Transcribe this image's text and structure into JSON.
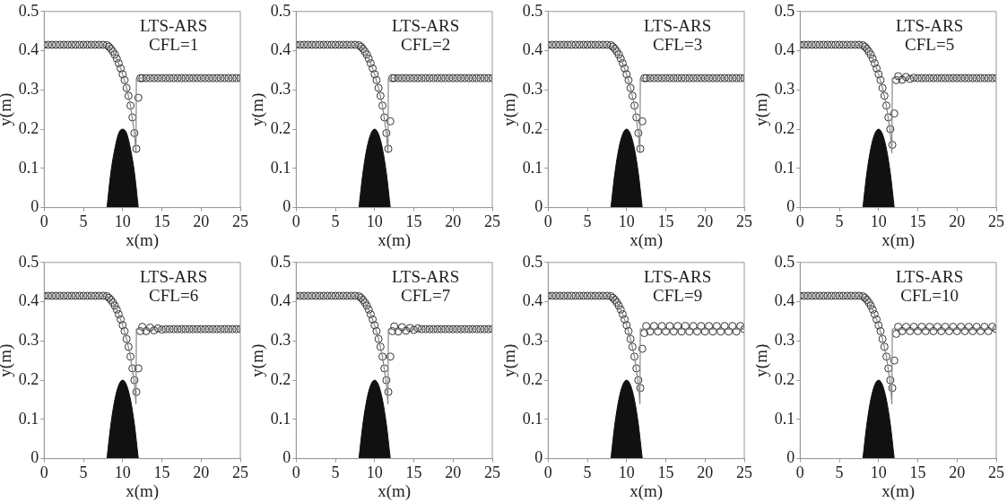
{
  "chart_data": [
    {
      "type": "line",
      "annotations": [
        "LTS-ARS",
        "CFL=1"
      ],
      "xlabel": "x(m)",
      "ylabel": "y(m)",
      "xlim": [
        0,
        25
      ],
      "xticks": [
        0,
        5,
        10,
        15,
        20,
        25
      ],
      "ylim": [
        0,
        0.5
      ],
      "yticks": [
        0,
        0.1,
        0.2,
        0.3,
        0.4,
        0.5
      ],
      "grid": false,
      "legend": false,
      "x": [
        0,
        0.5,
        1,
        1.5,
        2,
        2.5,
        3,
        3.5,
        4,
        4.5,
        5,
        5.5,
        6,
        6.5,
        7,
        7.5,
        8,
        8.25,
        8.5,
        8.75,
        9,
        9.25,
        9.5,
        9.75,
        10,
        10.25,
        10.5,
        10.75,
        11,
        11.25,
        11.5,
        11.75,
        12,
        12.25,
        12.5,
        13,
        13.5,
        14,
        14.5,
        15,
        15.5,
        16,
        16.5,
        17,
        17.5,
        18,
        18.5,
        19,
        19.5,
        20,
        20.5,
        21,
        21.5,
        22,
        22.5,
        23,
        23.5,
        24,
        24.5,
        25
      ],
      "series": [
        {
          "type": "area",
          "color": "#111111",
          "marker": "none",
          "x": [
            8,
            8.5,
            9,
            9.5,
            10,
            10.5,
            11,
            11.5,
            12
          ],
          "values": [
            0,
            0.09,
            0.15,
            0.19,
            0.2,
            0.19,
            0.15,
            0.09,
            0
          ]
        },
        {
          "type": "line",
          "color": "#888888",
          "marker": "none",
          "x": [
            0,
            8,
            8.5,
            9,
            9.5,
            10,
            10.5,
            11,
            11.5,
            11.7,
            11.75,
            25
          ],
          "values": [
            0.415,
            0.414,
            0.405,
            0.39,
            0.368,
            0.34,
            0.305,
            0.26,
            0.19,
            0.14,
            0.33,
            0.33
          ]
        },
        {
          "type": "scatter",
          "color": "#333333",
          "marker": "circle",
          "values": [
            0.415,
            0.415,
            0.415,
            0.415,
            0.415,
            0.415,
            0.415,
            0.415,
            0.415,
            0.415,
            0.415,
            0.415,
            0.415,
            0.415,
            0.415,
            0.415,
            0.414,
            0.41,
            0.405,
            0.398,
            0.39,
            0.38,
            0.368,
            0.355,
            0.34,
            0.325,
            0.305,
            0.285,
            0.26,
            0.23,
            0.19,
            0.15,
            0.28,
            0.33,
            0.33,
            0.33,
            0.33,
            0.33,
            0.33,
            0.33,
            0.33,
            0.33,
            0.33,
            0.33,
            0.33,
            0.33,
            0.33,
            0.33,
            0.33,
            0.33,
            0.33,
            0.33,
            0.33,
            0.33,
            0.33,
            0.33,
            0.33,
            0.33,
            0.33,
            0.33
          ]
        }
      ]
    },
    {
      "type": "line",
      "annotations": [
        "LTS-ARS",
        "CFL=2"
      ],
      "xlabel": "x(m)",
      "ylabel": "y(m)",
      "xlim": [
        0,
        25
      ],
      "xticks": [
        0,
        5,
        10,
        15,
        20,
        25
      ],
      "ylim": [
        0,
        0.5
      ],
      "yticks": [
        0,
        0.1,
        0.2,
        0.3,
        0.4,
        0.5
      ],
      "grid": false,
      "legend": false,
      "x": [
        0,
        0.5,
        1,
        1.5,
        2,
        2.5,
        3,
        3.5,
        4,
        4.5,
        5,
        5.5,
        6,
        6.5,
        7,
        7.5,
        8,
        8.25,
        8.5,
        8.75,
        9,
        9.25,
        9.5,
        9.75,
        10,
        10.25,
        10.5,
        10.75,
        11,
        11.25,
        11.5,
        11.75,
        12,
        12.25,
        12.5,
        13,
        13.5,
        14,
        14.5,
        15,
        15.5,
        16,
        16.5,
        17,
        17.5,
        18,
        18.5,
        19,
        19.5,
        20,
        20.5,
        21,
        21.5,
        22,
        22.5,
        23,
        23.5,
        24,
        24.5,
        25
      ],
      "series": [
        {
          "type": "area",
          "color": "#111111",
          "marker": "none",
          "x": [
            8,
            8.5,
            9,
            9.5,
            10,
            10.5,
            11,
            11.5,
            12
          ],
          "values": [
            0,
            0.0875,
            0.15,
            0.1875,
            0.2,
            0.1875,
            0.15,
            0.0875,
            0
          ]
        },
        {
          "type": "line",
          "color": "#888888",
          "marker": "none",
          "x": [
            0,
            8,
            8.5,
            9,
            9.5,
            10,
            10.5,
            11,
            11.5,
            11.7,
            11.75,
            25
          ],
          "values": [
            0.415,
            0.414,
            0.405,
            0.39,
            0.368,
            0.34,
            0.305,
            0.26,
            0.19,
            0.14,
            0.33,
            0.33
          ]
        },
        {
          "type": "scatter",
          "color": "#333333",
          "marker": "circle",
          "values": [
            0.415,
            0.415,
            0.415,
            0.415,
            0.415,
            0.415,
            0.415,
            0.415,
            0.415,
            0.415,
            0.415,
            0.415,
            0.415,
            0.415,
            0.415,
            0.415,
            0.414,
            0.41,
            0.405,
            0.398,
            0.39,
            0.38,
            0.368,
            0.355,
            0.34,
            0.325,
            0.305,
            0.285,
            0.26,
            0.23,
            0.19,
            0.15,
            0.22,
            0.33,
            0.33,
            0.33,
            0.33,
            0.33,
            0.33,
            0.33,
            0.33,
            0.33,
            0.33,
            0.33,
            0.33,
            0.33,
            0.33,
            0.33,
            0.33,
            0.33,
            0.33,
            0.33,
            0.33,
            0.33,
            0.33,
            0.33,
            0.33,
            0.33,
            0.33,
            0.33
          ]
        }
      ]
    },
    {
      "type": "line",
      "annotations": [
        "LTS-ARS",
        "CFL=3"
      ],
      "xlabel": "x(m)",
      "ylabel": "y(m)",
      "xlim": [
        0,
        25
      ],
      "xticks": [
        0,
        5,
        10,
        15,
        20,
        25
      ],
      "ylim": [
        0,
        0.5
      ],
      "yticks": [
        0,
        0.1,
        0.2,
        0.3,
        0.4,
        0.5
      ],
      "grid": false,
      "legend": false,
      "x": [
        0,
        0.5,
        1,
        1.5,
        2,
        2.5,
        3,
        3.5,
        4,
        4.5,
        5,
        5.5,
        6,
        6.5,
        7,
        7.5,
        8,
        8.25,
        8.5,
        8.75,
        9,
        9.25,
        9.5,
        9.75,
        10,
        10.25,
        10.5,
        10.75,
        11,
        11.25,
        11.5,
        11.75,
        12,
        12.25,
        12.5,
        13,
        13.5,
        14,
        14.5,
        15,
        15.5,
        16,
        16.5,
        17,
        17.5,
        18,
        18.5,
        19,
        19.5,
        20,
        20.5,
        21,
        21.5,
        22,
        22.5,
        23,
        23.5,
        24,
        24.5,
        25
      ],
      "series": [
        {
          "type": "area",
          "color": "#111111",
          "marker": "none",
          "x": [
            8,
            8.5,
            9,
            9.5,
            10,
            10.5,
            11,
            11.5,
            12
          ],
          "values": [
            0,
            0.0875,
            0.15,
            0.1875,
            0.2,
            0.1875,
            0.15,
            0.0875,
            0
          ]
        },
        {
          "type": "line",
          "color": "#888888",
          "marker": "none",
          "x": [
            0,
            8,
            8.5,
            9,
            9.5,
            10,
            10.5,
            11,
            11.5,
            11.7,
            11.75,
            25
          ],
          "values": [
            0.415,
            0.414,
            0.405,
            0.39,
            0.368,
            0.34,
            0.305,
            0.26,
            0.19,
            0.14,
            0.33,
            0.33
          ]
        },
        {
          "type": "scatter",
          "color": "#333333",
          "marker": "circle",
          "values": [
            0.415,
            0.415,
            0.415,
            0.415,
            0.415,
            0.415,
            0.415,
            0.415,
            0.415,
            0.415,
            0.415,
            0.415,
            0.415,
            0.415,
            0.415,
            0.415,
            0.414,
            0.41,
            0.405,
            0.398,
            0.39,
            0.38,
            0.368,
            0.355,
            0.34,
            0.325,
            0.305,
            0.285,
            0.26,
            0.23,
            0.19,
            0.15,
            0.22,
            0.33,
            0.33,
            0.33,
            0.33,
            0.33,
            0.33,
            0.33,
            0.33,
            0.33,
            0.33,
            0.33,
            0.33,
            0.33,
            0.33,
            0.33,
            0.33,
            0.33,
            0.33,
            0.33,
            0.33,
            0.33,
            0.33,
            0.33,
            0.33,
            0.33,
            0.33,
            0.33
          ]
        }
      ]
    },
    {
      "type": "line",
      "annotations": [
        "LTS-ARS",
        "CFL=5"
      ],
      "xlabel": "x(m)",
      "ylabel": "y(m)",
      "xlim": [
        0,
        25
      ],
      "xticks": [
        0,
        5,
        10,
        15,
        20,
        25
      ],
      "ylim": [
        0,
        0.5
      ],
      "yticks": [
        0,
        0.1,
        0.2,
        0.3,
        0.4,
        0.5
      ],
      "grid": false,
      "legend": false,
      "x": [
        0,
        0.5,
        1,
        1.5,
        2,
        2.5,
        3,
        3.5,
        4,
        4.5,
        5,
        5.5,
        6,
        6.5,
        7,
        7.5,
        8,
        8.25,
        8.5,
        8.75,
        9,
        9.25,
        9.5,
        9.75,
        10,
        10.25,
        10.5,
        10.75,
        11,
        11.25,
        11.5,
        11.75,
        12,
        12.25,
        12.5,
        13,
        13.5,
        14,
        14.5,
        15,
        15.5,
        16,
        16.5,
        17,
        17.5,
        18,
        18.5,
        19,
        19.5,
        20,
        20.5,
        21,
        21.5,
        22,
        22.5,
        23,
        23.5,
        24,
        24.5,
        25
      ],
      "series": [
        {
          "type": "area",
          "color": "#111111",
          "marker": "none",
          "x": [
            8,
            8.5,
            9,
            9.5,
            10,
            10.5,
            11,
            11.5,
            12
          ],
          "values": [
            0,
            0.0875,
            0.15,
            0.1875,
            0.2,
            0.1875,
            0.15,
            0.0875,
            0
          ]
        },
        {
          "type": "line",
          "color": "#888888",
          "marker": "none",
          "x": [
            0,
            8,
            8.5,
            9,
            9.5,
            10,
            10.5,
            11,
            11.5,
            11.7,
            11.75,
            25
          ],
          "values": [
            0.415,
            0.414,
            0.405,
            0.39,
            0.368,
            0.34,
            0.305,
            0.26,
            0.19,
            0.14,
            0.33,
            0.33
          ]
        },
        {
          "type": "scatter",
          "color": "#333333",
          "marker": "circle",
          "values": [
            0.415,
            0.415,
            0.415,
            0.415,
            0.415,
            0.415,
            0.415,
            0.415,
            0.415,
            0.415,
            0.415,
            0.415,
            0.415,
            0.415,
            0.415,
            0.415,
            0.414,
            0.41,
            0.405,
            0.398,
            0.39,
            0.38,
            0.368,
            0.355,
            0.34,
            0.325,
            0.305,
            0.285,
            0.26,
            0.23,
            0.2,
            0.16,
            0.24,
            0.325,
            0.335,
            0.326,
            0.333,
            0.328,
            0.331,
            0.33,
            0.33,
            0.33,
            0.33,
            0.33,
            0.33,
            0.33,
            0.33,
            0.33,
            0.33,
            0.33,
            0.33,
            0.33,
            0.33,
            0.33,
            0.33,
            0.33,
            0.33,
            0.33,
            0.33,
            0.33
          ]
        }
      ]
    },
    {
      "type": "line",
      "annotations": [
        "LTS-ARS",
        "CFL=6"
      ],
      "xlabel": "x(m)",
      "ylabel": "y(m)",
      "xlim": [
        0,
        25
      ],
      "xticks": [
        0,
        5,
        10,
        15,
        20,
        25
      ],
      "ylim": [
        0,
        0.5
      ],
      "yticks": [
        0,
        0.1,
        0.2,
        0.3,
        0.4,
        0.5
      ],
      "grid": false,
      "legend": false,
      "x": [
        0,
        0.5,
        1,
        1.5,
        2,
        2.5,
        3,
        3.5,
        4,
        4.5,
        5,
        5.5,
        6,
        6.5,
        7,
        7.5,
        8,
        8.25,
        8.5,
        8.75,
        9,
        9.25,
        9.5,
        9.75,
        10,
        10.25,
        10.5,
        10.75,
        11,
        11.25,
        11.5,
        11.75,
        12,
        12.25,
        12.5,
        13,
        13.5,
        14,
        14.5,
        15,
        15.5,
        16,
        16.5,
        17,
        17.5,
        18,
        18.5,
        19,
        19.5,
        20,
        20.5,
        21,
        21.5,
        22,
        22.5,
        23,
        23.5,
        24,
        24.5,
        25
      ],
      "series": [
        {
          "type": "area",
          "color": "#111111",
          "marker": "none",
          "x": [
            8,
            8.5,
            9,
            9.5,
            10,
            10.5,
            11,
            11.5,
            12
          ],
          "values": [
            0,
            0.0875,
            0.15,
            0.1875,
            0.2,
            0.1875,
            0.15,
            0.0875,
            0
          ]
        },
        {
          "type": "line",
          "color": "#888888",
          "marker": "none",
          "x": [
            0,
            8,
            8.5,
            9,
            9.5,
            10,
            10.5,
            11,
            11.5,
            11.7,
            11.75,
            25
          ],
          "values": [
            0.415,
            0.414,
            0.405,
            0.39,
            0.368,
            0.34,
            0.305,
            0.26,
            0.19,
            0.14,
            0.33,
            0.33
          ]
        },
        {
          "type": "scatter",
          "color": "#333333",
          "marker": "circle",
          "values": [
            0.415,
            0.415,
            0.415,
            0.415,
            0.415,
            0.415,
            0.415,
            0.415,
            0.415,
            0.415,
            0.415,
            0.415,
            0.415,
            0.415,
            0.415,
            0.415,
            0.414,
            0.41,
            0.405,
            0.398,
            0.39,
            0.38,
            0.368,
            0.355,
            0.34,
            0.325,
            0.305,
            0.285,
            0.26,
            0.23,
            0.2,
            0.17,
            0.23,
            0.325,
            0.336,
            0.325,
            0.334,
            0.327,
            0.332,
            0.329,
            0.33,
            0.33,
            0.33,
            0.33,
            0.33,
            0.33,
            0.33,
            0.33,
            0.33,
            0.33,
            0.33,
            0.33,
            0.33,
            0.33,
            0.33,
            0.33,
            0.33,
            0.33,
            0.33,
            0.33
          ]
        }
      ]
    },
    {
      "type": "line",
      "annotations": [
        "LTS-ARS",
        "CFL=7"
      ],
      "xlabel": "x(m)",
      "ylabel": "y(m)",
      "xlim": [
        0,
        25
      ],
      "xticks": [
        0,
        5,
        10,
        15,
        20,
        25
      ],
      "ylim": [
        0,
        0.5
      ],
      "yticks": [
        0,
        0.1,
        0.2,
        0.3,
        0.4,
        0.5
      ],
      "grid": false,
      "legend": false,
      "x": [
        0,
        0.5,
        1,
        1.5,
        2,
        2.5,
        3,
        3.5,
        4,
        4.5,
        5,
        5.5,
        6,
        6.5,
        7,
        7.5,
        8,
        8.25,
        8.5,
        8.75,
        9,
        9.25,
        9.5,
        9.75,
        10,
        10.25,
        10.5,
        10.75,
        11,
        11.25,
        11.5,
        11.75,
        12,
        12.25,
        12.5,
        13,
        13.5,
        14,
        14.5,
        15,
        15.5,
        16,
        16.5,
        17,
        17.5,
        18,
        18.5,
        19,
        19.5,
        20,
        20.5,
        21,
        21.5,
        22,
        22.5,
        23,
        23.5,
        24,
        24.5,
        25
      ],
      "series": [
        {
          "type": "area",
          "color": "#111111",
          "marker": "none",
          "x": [
            8,
            8.5,
            9,
            9.5,
            10,
            10.5,
            11,
            11.5,
            12
          ],
          "values": [
            0,
            0.0875,
            0.15,
            0.1875,
            0.2,
            0.1875,
            0.15,
            0.0875,
            0
          ]
        },
        {
          "type": "line",
          "color": "#888888",
          "marker": "none",
          "x": [
            0,
            8,
            8.5,
            9,
            9.5,
            10,
            10.5,
            11,
            11.5,
            11.7,
            11.75,
            25
          ],
          "values": [
            0.415,
            0.414,
            0.405,
            0.39,
            0.368,
            0.34,
            0.305,
            0.26,
            0.19,
            0.14,
            0.33,
            0.33
          ]
        },
        {
          "type": "scatter",
          "color": "#333333",
          "marker": "circle",
          "values": [
            0.415,
            0.415,
            0.415,
            0.415,
            0.415,
            0.415,
            0.415,
            0.415,
            0.415,
            0.415,
            0.415,
            0.415,
            0.415,
            0.415,
            0.415,
            0.415,
            0.414,
            0.41,
            0.405,
            0.398,
            0.39,
            0.38,
            0.368,
            0.355,
            0.34,
            0.325,
            0.305,
            0.285,
            0.26,
            0.23,
            0.2,
            0.17,
            0.26,
            0.325,
            0.337,
            0.324,
            0.335,
            0.326,
            0.333,
            0.328,
            0.332,
            0.33,
            0.33,
            0.33,
            0.33,
            0.33,
            0.33,
            0.33,
            0.33,
            0.33,
            0.33,
            0.33,
            0.33,
            0.33,
            0.33,
            0.33,
            0.33,
            0.33,
            0.33,
            0.33
          ]
        }
      ]
    },
    {
      "type": "line",
      "annotations": [
        "LTS-ARS",
        "CFL=9"
      ],
      "xlabel": "x(m)",
      "ylabel": "y(m)",
      "xlim": [
        0,
        25
      ],
      "xticks": [
        0,
        5,
        10,
        15,
        20,
        25
      ],
      "ylim": [
        0,
        0.5
      ],
      "yticks": [
        0,
        0.1,
        0.2,
        0.3,
        0.4,
        0.5
      ],
      "grid": false,
      "legend": false,
      "x": [
        0,
        0.5,
        1,
        1.5,
        2,
        2.5,
        3,
        3.5,
        4,
        4.5,
        5,
        5.5,
        6,
        6.5,
        7,
        7.5,
        8,
        8.25,
        8.5,
        8.75,
        9,
        9.25,
        9.5,
        9.75,
        10,
        10.25,
        10.5,
        10.75,
        11,
        11.25,
        11.5,
        11.75,
        12,
        12.25,
        12.5,
        13,
        13.5,
        14,
        14.5,
        15,
        15.5,
        16,
        16.5,
        17,
        17.5,
        18,
        18.5,
        19,
        19.5,
        20,
        20.5,
        21,
        21.5,
        22,
        22.5,
        23,
        23.5,
        24,
        24.5,
        25
      ],
      "series": [
        {
          "type": "area",
          "color": "#111111",
          "marker": "none",
          "x": [
            8,
            8.5,
            9,
            9.5,
            10,
            10.5,
            11,
            11.5,
            12
          ],
          "values": [
            0,
            0.0875,
            0.15,
            0.1875,
            0.2,
            0.1875,
            0.15,
            0.0875,
            0
          ]
        },
        {
          "type": "line",
          "color": "#888888",
          "marker": "none",
          "x": [
            0,
            8,
            8.5,
            9,
            9.5,
            10,
            10.5,
            11,
            11.5,
            11.7,
            11.75,
            25
          ],
          "values": [
            0.415,
            0.414,
            0.405,
            0.39,
            0.368,
            0.34,
            0.305,
            0.26,
            0.19,
            0.14,
            0.33,
            0.33
          ]
        },
        {
          "type": "scatter",
          "color": "#333333",
          "marker": "circle",
          "values": [
            0.415,
            0.415,
            0.415,
            0.415,
            0.415,
            0.415,
            0.415,
            0.415,
            0.415,
            0.415,
            0.415,
            0.415,
            0.415,
            0.415,
            0.415,
            0.415,
            0.414,
            0.41,
            0.405,
            0.398,
            0.39,
            0.38,
            0.368,
            0.355,
            0.34,
            0.325,
            0.305,
            0.285,
            0.26,
            0.23,
            0.2,
            0.18,
            0.28,
            0.32,
            0.338,
            0.324,
            0.338,
            0.324,
            0.338,
            0.324,
            0.338,
            0.324,
            0.338,
            0.324,
            0.338,
            0.324,
            0.338,
            0.324,
            0.338,
            0.324,
            0.338,
            0.324,
            0.338,
            0.324,
            0.338,
            0.324,
            0.338,
            0.324,
            0.338,
            0.33
          ]
        }
      ]
    },
    {
      "type": "line",
      "annotations": [
        "LTS-ARS",
        "CFL=10"
      ],
      "xlabel": "x(m)",
      "ylabel": "y(m)",
      "xlim": [
        0,
        25
      ],
      "xticks": [
        0,
        5,
        10,
        15,
        20,
        25
      ],
      "ylim": [
        0,
        0.5
      ],
      "yticks": [
        0,
        0.1,
        0.2,
        0.3,
        0.4,
        0.5
      ],
      "grid": false,
      "legend": false,
      "x": [
        0,
        0.5,
        1,
        1.5,
        2,
        2.5,
        3,
        3.5,
        4,
        4.5,
        5,
        5.5,
        6,
        6.5,
        7,
        7.5,
        8,
        8.25,
        8.5,
        8.75,
        9,
        9.25,
        9.5,
        9.75,
        10,
        10.25,
        10.5,
        10.75,
        11,
        11.25,
        11.5,
        11.75,
        12,
        12.25,
        12.5,
        13,
        13.5,
        14,
        14.5,
        15,
        15.5,
        16,
        16.5,
        17,
        17.5,
        18,
        18.5,
        19,
        19.5,
        20,
        20.5,
        21,
        21.5,
        22,
        22.5,
        23,
        23.5,
        24,
        24.5,
        25
      ],
      "series": [
        {
          "type": "area",
          "color": "#111111",
          "marker": "none",
          "x": [
            8,
            8.5,
            9,
            9.5,
            10,
            10.5,
            11,
            11.5,
            12
          ],
          "values": [
            0,
            0.0875,
            0.15,
            0.1875,
            0.2,
            0.1875,
            0.15,
            0.0875,
            0
          ]
        },
        {
          "type": "line",
          "color": "#888888",
          "marker": "none",
          "x": [
            0,
            8,
            8.5,
            9,
            9.5,
            10,
            10.5,
            11,
            11.5,
            11.7,
            11.75,
            25
          ],
          "values": [
            0.415,
            0.414,
            0.405,
            0.39,
            0.368,
            0.34,
            0.305,
            0.26,
            0.19,
            0.14,
            0.33,
            0.33
          ]
        },
        {
          "type": "scatter",
          "color": "#333333",
          "marker": "circle",
          "values": [
            0.415,
            0.415,
            0.415,
            0.415,
            0.415,
            0.415,
            0.415,
            0.415,
            0.415,
            0.415,
            0.415,
            0.415,
            0.415,
            0.415,
            0.415,
            0.415,
            0.414,
            0.41,
            0.405,
            0.398,
            0.39,
            0.38,
            0.368,
            0.355,
            0.34,
            0.325,
            0.305,
            0.285,
            0.26,
            0.23,
            0.2,
            0.18,
            0.25,
            0.318,
            0.336,
            0.325,
            0.336,
            0.325,
            0.336,
            0.325,
            0.336,
            0.325,
            0.336,
            0.325,
            0.336,
            0.325,
            0.336,
            0.325,
            0.336,
            0.325,
            0.336,
            0.325,
            0.336,
            0.325,
            0.336,
            0.325,
            0.336,
            0.325,
            0.336,
            0.33
          ]
        }
      ]
    }
  ]
}
